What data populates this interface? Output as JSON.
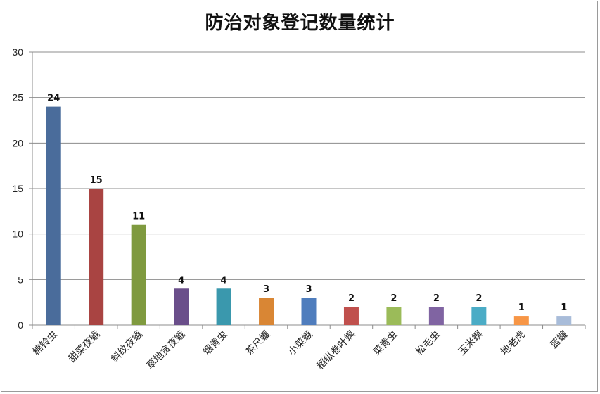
{
  "chart_data": {
    "type": "bar",
    "title": "防治对象登记数量统计",
    "xlabel": "",
    "ylabel": "",
    "ylim": [
      0,
      30
    ],
    "yticks": [
      0,
      5,
      10,
      15,
      20,
      25,
      30
    ],
    "grid": true,
    "legend": "none",
    "categories": [
      "棉铃虫",
      "甜菜夜蛾",
      "斜纹夜蛾",
      "草地贪夜蛾",
      "烟青虫",
      "茶尺蠖",
      "小菜蛾",
      "稻纵卷叶螟",
      "菜青虫",
      "松毛虫",
      "玉米螟",
      "地老虎",
      "蓝蠊"
    ],
    "values": [
      24,
      15,
      11,
      4,
      4,
      3,
      3,
      2,
      2,
      2,
      2,
      1,
      1
    ],
    "colors": [
      "#4a6c9b",
      "#a94442",
      "#7f9a3f",
      "#6a4e8a",
      "#3a98ad",
      "#d98634",
      "#4f7dbd",
      "#c0504d",
      "#9bbb59",
      "#8064a2",
      "#4bacc6",
      "#f79646",
      "#a8bcd9"
    ]
  }
}
